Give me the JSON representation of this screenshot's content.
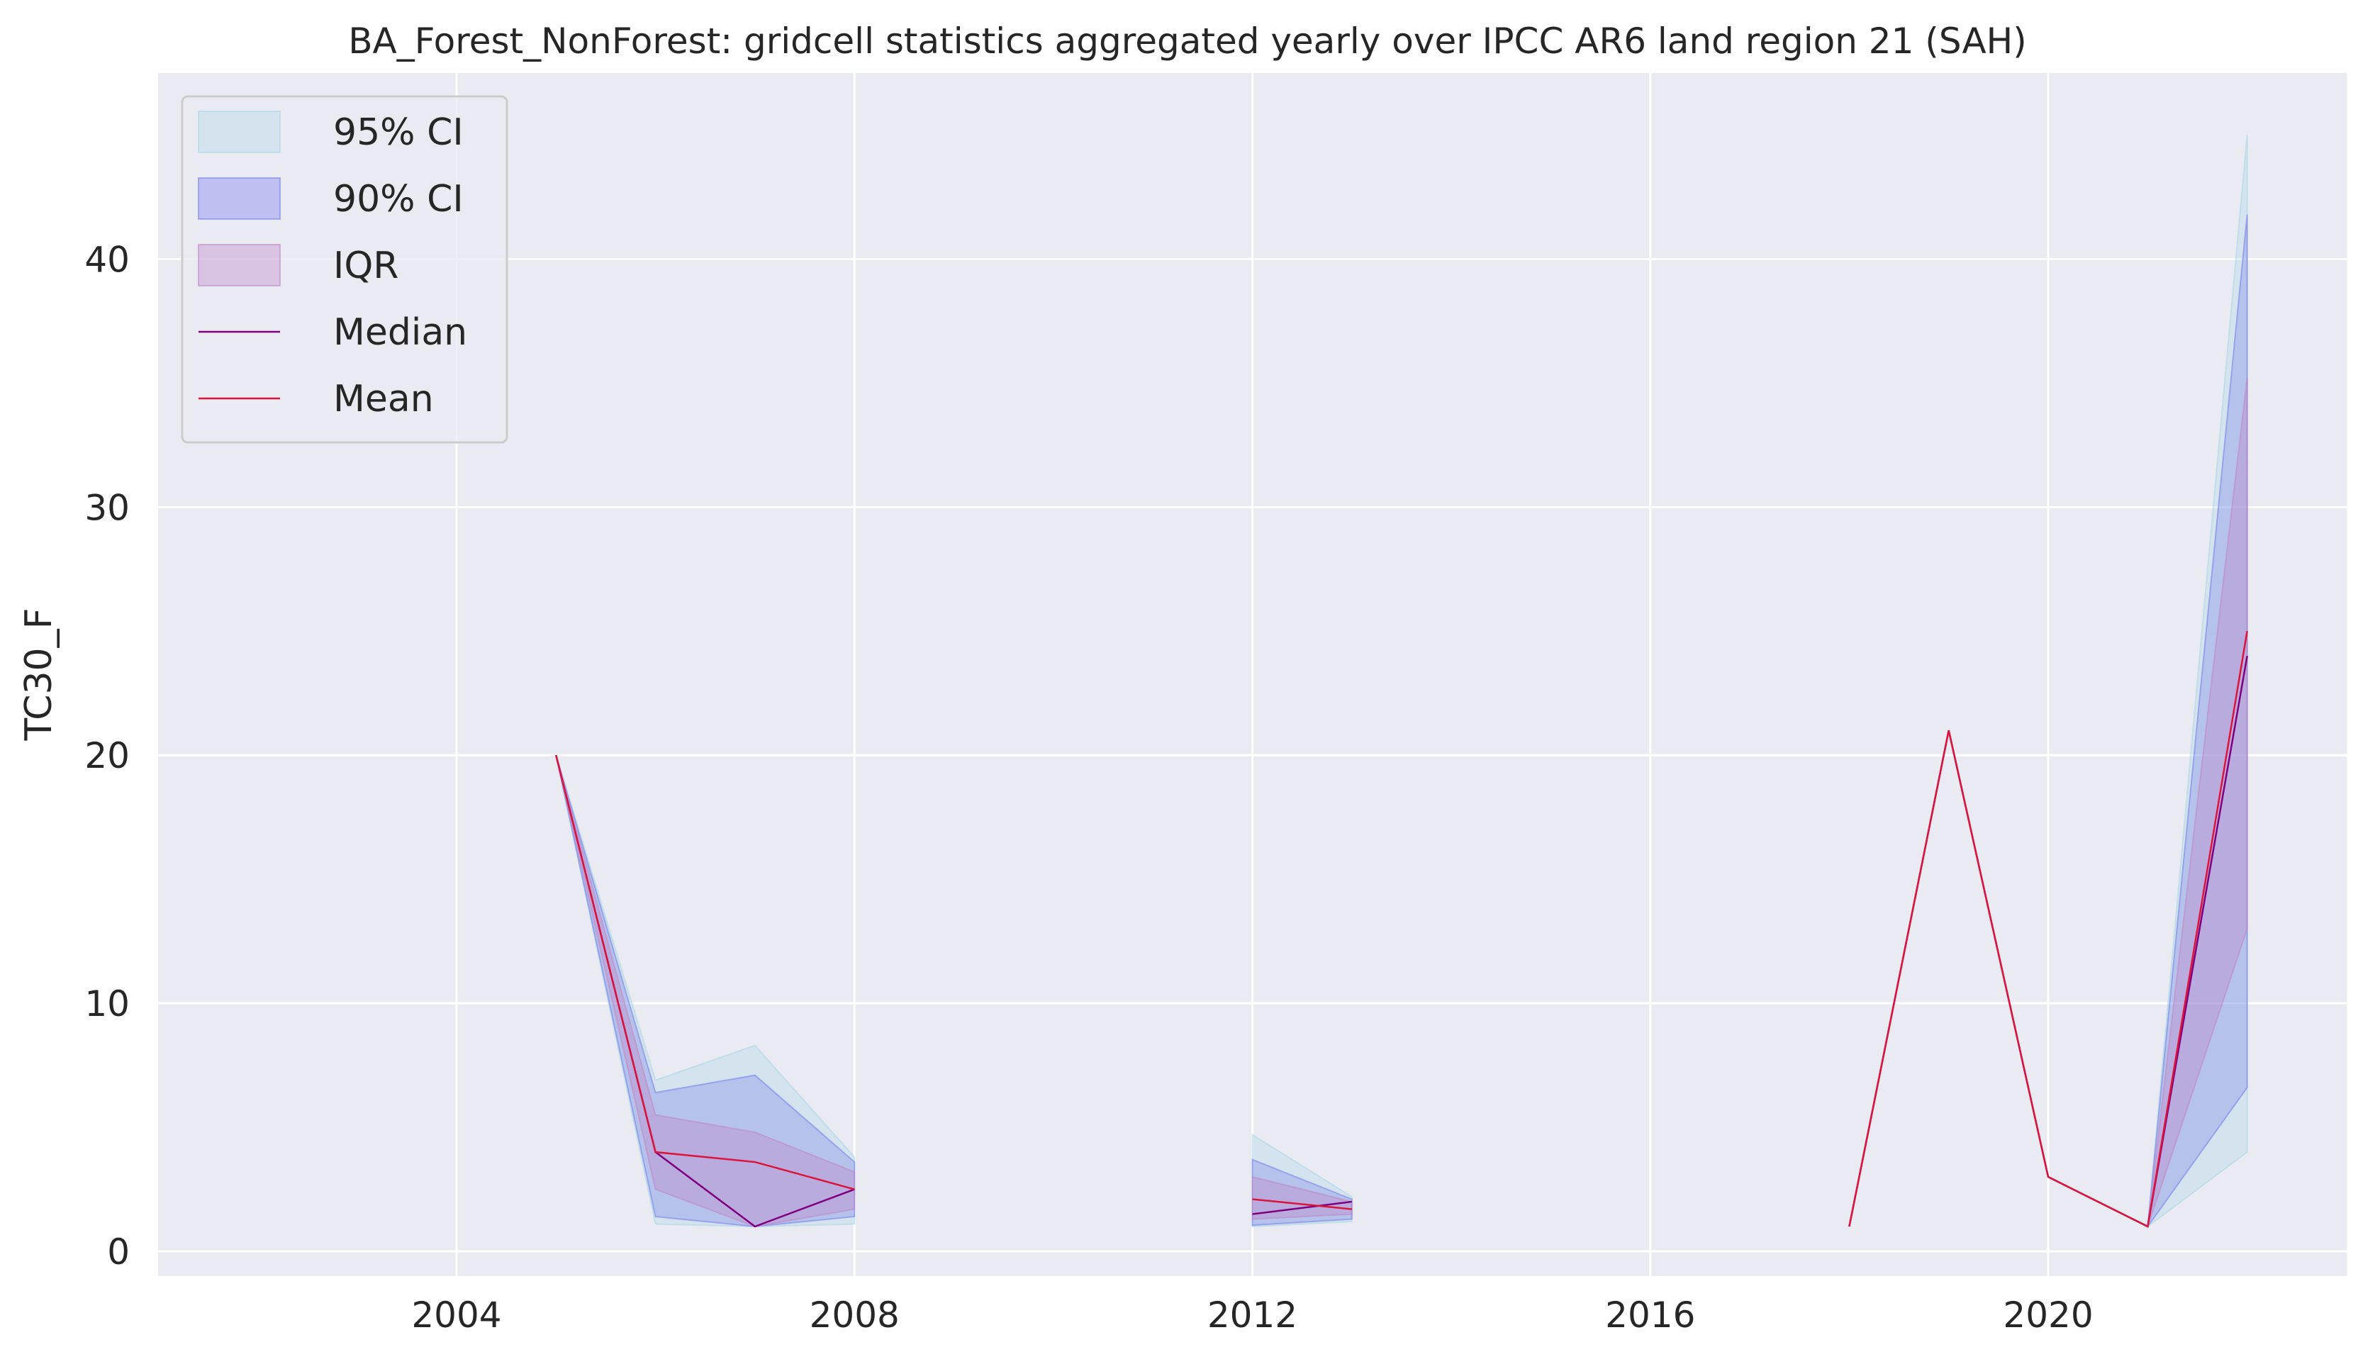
{
  "chart_data": {
    "type": "line",
    "title": "BA_Forest_NonForest: gridcell statistics aggregated yearly over IPCC AR6 land region 21 (SAH)",
    "xlabel": "",
    "ylabel": "TC30_F",
    "xlim": [
      2001,
      2023
    ],
    "ylim": [
      -1,
      47.5
    ],
    "xticks": [
      2004,
      2008,
      2012,
      2016,
      2020
    ],
    "yticks": [
      0,
      10,
      20,
      30,
      40
    ],
    "grid": true,
    "legend_position": "upper left",
    "colors": {
      "ci95": "#add8e6",
      "ci90": "#7b83eb",
      "iqr": "#c08ac8",
      "median": "#800080",
      "mean": "#dc143c",
      "background": "#eaeaf2",
      "grid": "#ffffff"
    },
    "legend": [
      {
        "key": "ci95",
        "label": "95% CI",
        "kind": "band"
      },
      {
        "key": "ci90",
        "label": "90% CI",
        "kind": "band"
      },
      {
        "key": "iqr",
        "label": "IQR",
        "kind": "band"
      },
      {
        "key": "median",
        "label": "Median",
        "kind": "line"
      },
      {
        "key": "mean",
        "label": "Mean",
        "kind": "line"
      }
    ],
    "segments": [
      {
        "x": [
          2005,
          2006,
          2007,
          2008
        ],
        "ci95_low": [
          20,
          1.1,
          1.0,
          1.1
        ],
        "ci95_high": [
          20,
          6.9,
          8.3,
          3.8
        ],
        "ci90_low": [
          20,
          1.4,
          1.0,
          1.4
        ],
        "ci90_high": [
          20,
          6.4,
          7.1,
          3.6
        ],
        "iqr_low": [
          20,
          2.5,
          1.0,
          1.7
        ],
        "iqr_high": [
          20,
          5.5,
          4.8,
          3.2
        ],
        "median": [
          20,
          4.0,
          1.0,
          2.5
        ],
        "mean": [
          20,
          4.0,
          3.6,
          2.5
        ]
      },
      {
        "x": [
          2012,
          2013
        ],
        "ci95_low": [
          1.0,
          1.2
        ],
        "ci95_high": [
          4.7,
          2.2
        ],
        "ci90_low": [
          1.05,
          1.3
        ],
        "ci90_high": [
          3.7,
          2.1
        ],
        "iqr_low": [
          1.3,
          1.5
        ],
        "iqr_high": [
          3.0,
          2.0
        ],
        "median": [
          1.5,
          2.0
        ],
        "mean": [
          2.1,
          1.7
        ]
      },
      {
        "x": [
          2018,
          2019,
          2020,
          2021,
          2022
        ],
        "ci95_low": [
          1.0,
          21.0,
          3.0,
          1.0,
          4.0
        ],
        "ci95_high": [
          1.0,
          21.0,
          3.0,
          1.0,
          45.0
        ],
        "ci90_low": [
          1.0,
          21.0,
          3.0,
          1.0,
          6.6
        ],
        "ci90_high": [
          1.0,
          21.0,
          3.0,
          1.0,
          41.8
        ],
        "iqr_low": [
          1.0,
          21.0,
          3.0,
          1.0,
          13.0
        ],
        "iqr_high": [
          1.0,
          21.0,
          3.0,
          1.0,
          35.2
        ],
        "median": [
          1.0,
          21.0,
          3.0,
          1.0,
          24.0
        ],
        "mean": [
          1.0,
          21.0,
          3.0,
          1.0,
          25.0
        ]
      }
    ]
  }
}
